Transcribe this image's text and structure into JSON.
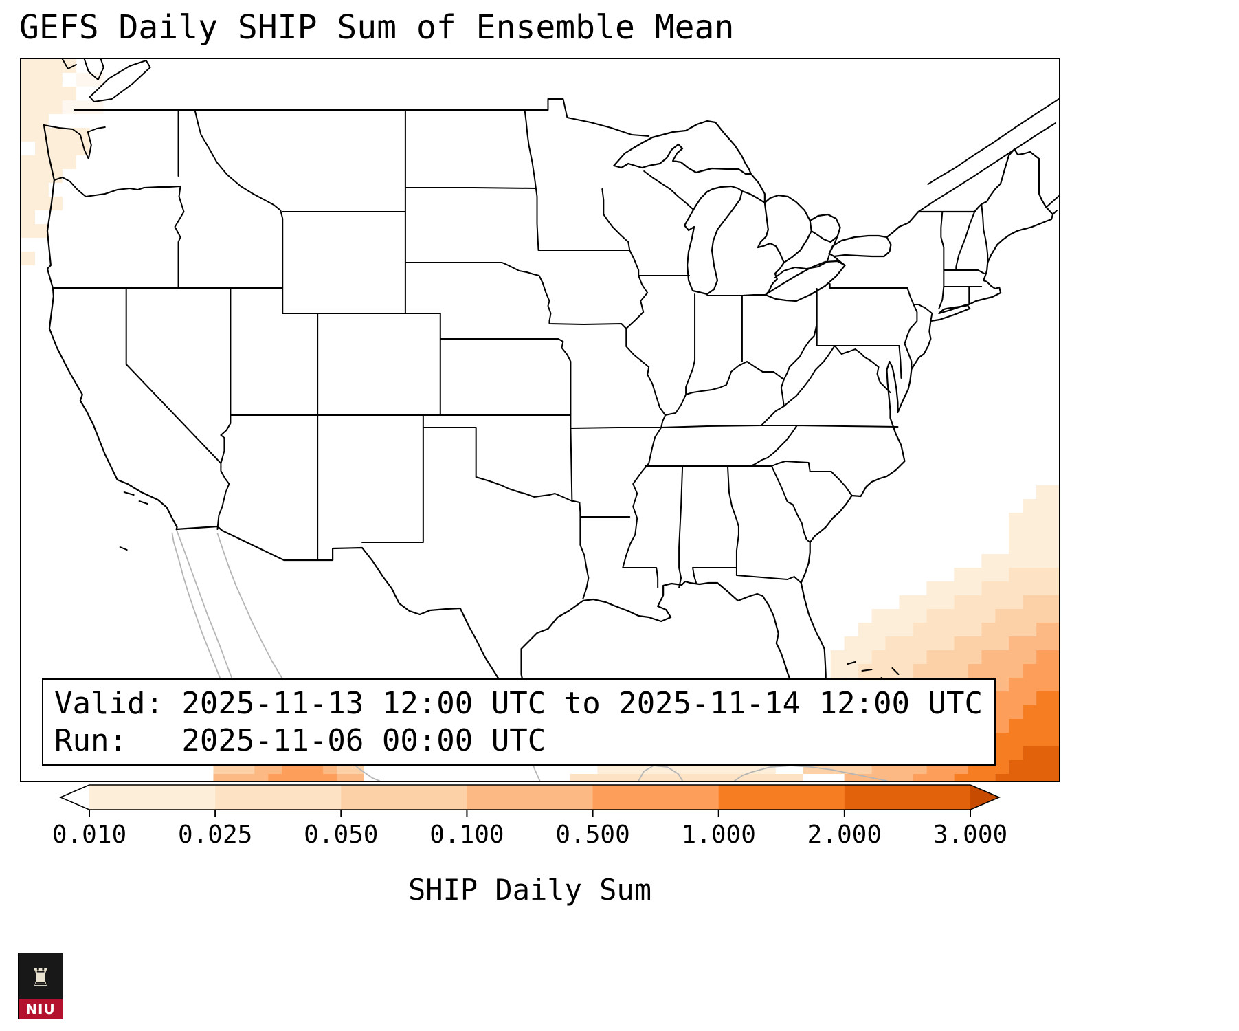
{
  "title": "GEFS Daily SHIP Sum of Ensemble Mean",
  "info_box": {
    "valid_line": "Valid: 2025-11-13 12:00 UTC to 2025-11-14 12:00 UTC",
    "run_line": "Run:   2025-11-06 00:00 UTC"
  },
  "logo": {
    "text": "NIU",
    "castle_icon": "♜",
    "banner_color": "#b3112e",
    "shield_color": "#181818"
  },
  "chart_data": {
    "type": "heatmap",
    "title": "GEFS Daily SHIP Sum of Ensemble Mean",
    "region": "Continental United States",
    "colorbar": {
      "label": "SHIP Daily Sum",
      "ticks": [
        "0.010",
        "0.025",
        "0.050",
        "0.100",
        "0.500",
        "1.000",
        "2.000",
        "3.000"
      ],
      "under_arrow_color": "#ffffff",
      "over_arrow_level": 8,
      "segment_levels": [
        1,
        2,
        3,
        4,
        5,
        6,
        7
      ]
    },
    "palette": [
      "#fef7ef",
      "#fdeeda",
      "#fde3c3",
      "#fdd1a7",
      "#fdb983",
      "#fd9e5a",
      "#f67d22",
      "#e2610b",
      "#c74c02"
    ],
    "cell_size": 20,
    "heat_rows": [
      {
        "r": 0,
        "runs": [
          [
            0,
            3,
            1
          ]
        ]
      },
      {
        "r": 1,
        "runs": [
          [
            0,
            2,
            1
          ],
          [
            4,
            5,
            0
          ]
        ]
      },
      {
        "r": 2,
        "runs": [
          [
            0,
            3,
            1
          ]
        ]
      },
      {
        "r": 3,
        "runs": [
          [
            0,
            2,
            1
          ],
          [
            3,
            5,
            0
          ]
        ]
      },
      {
        "r": 4,
        "runs": [
          [
            0,
            1,
            1
          ]
        ]
      },
      {
        "r": 5,
        "runs": [
          [
            0,
            4,
            1
          ]
        ]
      },
      {
        "r": 6,
        "runs": [
          [
            1,
            4,
            1
          ]
        ]
      },
      {
        "r": 7,
        "runs": [
          [
            0,
            3,
            1
          ]
        ]
      },
      {
        "r": 8,
        "runs": [
          [
            0,
            2,
            1
          ]
        ]
      },
      {
        "r": 9,
        "runs": [
          [
            0,
            1,
            1
          ]
        ]
      },
      {
        "r": 10,
        "runs": [
          [
            0,
            2,
            1
          ]
        ]
      },
      {
        "r": 11,
        "runs": [
          [
            0,
            0,
            1
          ]
        ]
      },
      {
        "r": 12,
        "runs": [
          [
            0,
            1,
            1
          ]
        ]
      },
      {
        "r": 14,
        "runs": [
          [
            0,
            0,
            1
          ]
        ]
      },
      {
        "r": 31,
        "runs": [
          [
            74,
            75,
            1
          ]
        ]
      },
      {
        "r": 32,
        "runs": [
          [
            73,
            75,
            1
          ]
        ]
      },
      {
        "r": 33,
        "runs": [
          [
            72,
            75,
            1
          ]
        ]
      },
      {
        "r": 34,
        "runs": [
          [
            72,
            75,
            1
          ]
        ]
      },
      {
        "r": 35,
        "runs": [
          [
            72,
            75,
            1
          ]
        ]
      },
      {
        "r": 36,
        "runs": [
          [
            70,
            75,
            1
          ]
        ]
      },
      {
        "r": 37,
        "runs": [
          [
            68,
            71,
            1
          ],
          [
            72,
            75,
            2
          ]
        ]
      },
      {
        "r": 38,
        "runs": [
          [
            66,
            69,
            1
          ],
          [
            70,
            75,
            2
          ]
        ]
      },
      {
        "r": 39,
        "runs": [
          [
            64,
            67,
            1
          ],
          [
            68,
            72,
            2
          ],
          [
            73,
            75,
            3
          ]
        ]
      },
      {
        "r": 40,
        "runs": [
          [
            62,
            65,
            1
          ],
          [
            66,
            70,
            2
          ],
          [
            71,
            75,
            3
          ]
        ]
      },
      {
        "r": 41,
        "runs": [
          [
            61,
            64,
            1
          ],
          [
            65,
            69,
            2
          ],
          [
            70,
            73,
            3
          ],
          [
            74,
            75,
            4
          ]
        ]
      },
      {
        "r": 42,
        "runs": [
          [
            60,
            62,
            1
          ],
          [
            63,
            67,
            2
          ],
          [
            68,
            71,
            3
          ],
          [
            72,
            75,
            4
          ]
        ]
      },
      {
        "r": 43,
        "runs": [
          [
            59,
            61,
            1
          ],
          [
            62,
            65,
            2
          ],
          [
            66,
            69,
            3
          ],
          [
            70,
            73,
            4
          ],
          [
            74,
            75,
            5
          ]
        ]
      },
      {
        "r": 44,
        "runs": [
          [
            59,
            60,
            1
          ],
          [
            61,
            64,
            2
          ],
          [
            65,
            68,
            3
          ],
          [
            69,
            72,
            4
          ],
          [
            73,
            75,
            5
          ]
        ]
      },
      {
        "r": 45,
        "runs": [
          [
            59,
            59,
            1
          ],
          [
            60,
            63,
            2
          ],
          [
            64,
            67,
            3
          ],
          [
            68,
            71,
            4
          ],
          [
            72,
            75,
            5
          ]
        ]
      },
      {
        "r": 46,
        "runs": [
          [
            58,
            58,
            1
          ],
          [
            59,
            62,
            2
          ],
          [
            63,
            66,
            3
          ],
          [
            67,
            70,
            4
          ],
          [
            71,
            73,
            5
          ],
          [
            74,
            75,
            6
          ]
        ]
      },
      {
        "r": 47,
        "runs": [
          [
            58,
            61,
            2
          ],
          [
            62,
            65,
            3
          ],
          [
            66,
            69,
            4
          ],
          [
            70,
            72,
            5
          ],
          [
            73,
            75,
            6
          ]
        ]
      },
      {
        "r": 48,
        "runs": [
          [
            16,
            22,
            1
          ],
          [
            57,
            60,
            2
          ],
          [
            61,
            64,
            3
          ],
          [
            65,
            68,
            4
          ],
          [
            69,
            71,
            5
          ],
          [
            72,
            75,
            6
          ]
        ]
      },
      {
        "r": 49,
        "runs": [
          [
            46,
            50,
            1
          ],
          [
            15,
            22,
            2
          ],
          [
            18,
            20,
            3
          ],
          [
            57,
            59,
            2
          ],
          [
            60,
            63,
            3
          ],
          [
            64,
            67,
            4
          ],
          [
            68,
            70,
            5
          ],
          [
            71,
            75,
            6
          ]
        ]
      },
      {
        "r": 50,
        "runs": [
          [
            44,
            52,
            1
          ],
          [
            15,
            23,
            2
          ],
          [
            17,
            21,
            3
          ],
          [
            19,
            20,
            4
          ],
          [
            58,
            62,
            3
          ],
          [
            63,
            66,
            4
          ],
          [
            67,
            69,
            5
          ],
          [
            70,
            72,
            6
          ],
          [
            73,
            75,
            7
          ]
        ]
      },
      {
        "r": 51,
        "runs": [
          [
            42,
            54,
            1
          ],
          [
            14,
            24,
            3
          ],
          [
            17,
            22,
            4
          ],
          [
            19,
            21,
            5
          ],
          [
            57,
            61,
            3
          ],
          [
            62,
            65,
            4
          ],
          [
            66,
            68,
            5
          ],
          [
            69,
            71,
            6
          ],
          [
            72,
            75,
            7
          ]
        ]
      },
      {
        "r": 52,
        "runs": [
          [
            40,
            56,
            2
          ],
          [
            14,
            24,
            4
          ],
          [
            18,
            22,
            5
          ],
          [
            60,
            64,
            4
          ],
          [
            65,
            67,
            5
          ],
          [
            68,
            70,
            6
          ],
          [
            71,
            75,
            7
          ]
        ]
      }
    ]
  }
}
